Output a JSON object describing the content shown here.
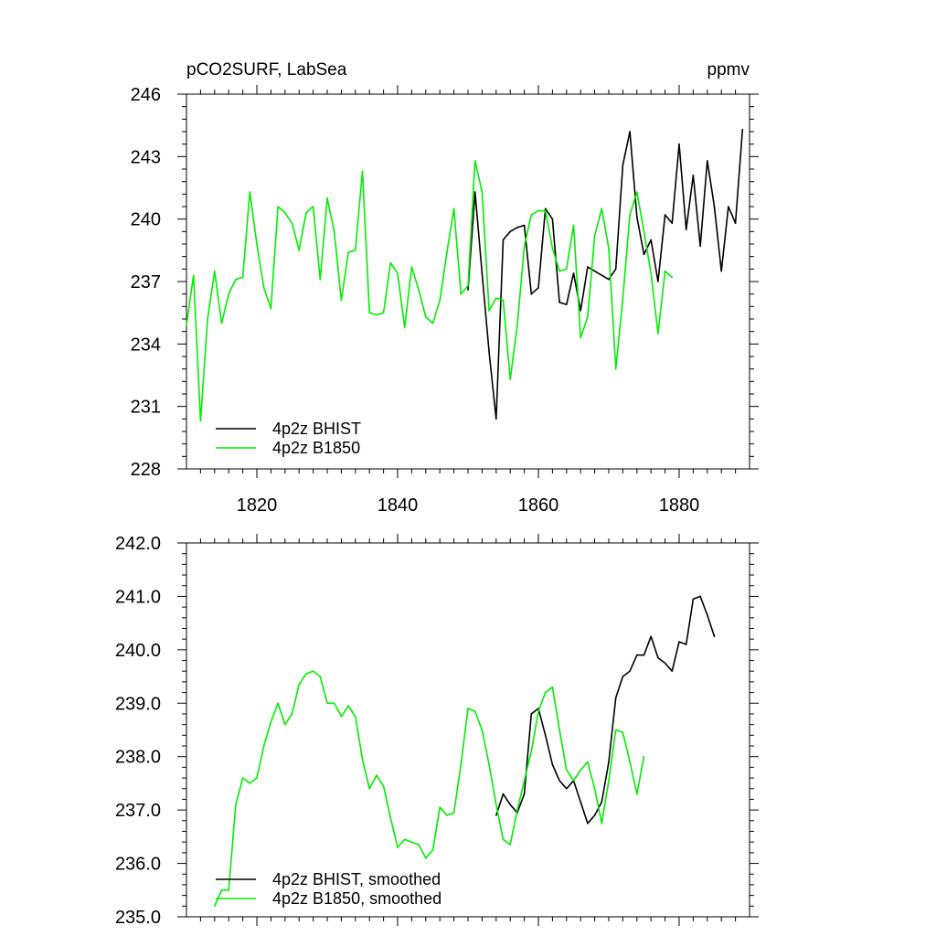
{
  "colors": {
    "bhist": "#000000",
    "b1850": "#00ee00"
  },
  "chart_data": [
    {
      "type": "line",
      "title": "pCO2SURF, LabSea",
      "units": "ppmv",
      "xlim": [
        1810,
        1890
      ],
      "ylim": [
        228,
        246
      ],
      "xticks": [
        1820,
        1840,
        1860,
        1880
      ],
      "yticks": [
        228,
        231,
        234,
        237,
        240,
        243,
        246
      ],
      "ytick_labels": [
        "228",
        "231",
        "234",
        "237",
        "240",
        "243",
        "246"
      ],
      "legend_position": "bottom-left",
      "series": [
        {
          "name": "4p2z BHIST",
          "color_key": "bhist",
          "x": [
            1850,
            1851,
            1852,
            1853,
            1854,
            1855,
            1856,
            1857,
            1858,
            1859,
            1860,
            1861,
            1862,
            1863,
            1864,
            1865,
            1866,
            1867,
            1868,
            1869,
            1870,
            1871,
            1872,
            1873,
            1874,
            1875,
            1876,
            1877,
            1878,
            1879,
            1880,
            1881,
            1882,
            1883,
            1884,
            1885,
            1886,
            1887,
            1888,
            1889
          ],
          "y": [
            236.6,
            241.3,
            237.4,
            233.6,
            230.4,
            239.0,
            239.4,
            239.6,
            239.7,
            236.4,
            236.7,
            240.5,
            240.0,
            236.0,
            235.9,
            237.4,
            235.6,
            237.7,
            237.5,
            237.3,
            237.1,
            237.6,
            242.6,
            244.2,
            240.1,
            238.3,
            239.0,
            237.0,
            240.2,
            239.8,
            243.6,
            239.5,
            242.1,
            238.7,
            242.8,
            240.6,
            237.5,
            240.6,
            239.8,
            244.3
          ]
        },
        {
          "name": "4p2z B1850",
          "color_key": "b1850",
          "x": [
            1810,
            1811,
            1812,
            1813,
            1814,
            1815,
            1816,
            1817,
            1818,
            1819,
            1820,
            1821,
            1822,
            1823,
            1824,
            1825,
            1826,
            1827,
            1828,
            1829,
            1830,
            1831,
            1832,
            1833,
            1834,
            1835,
            1836,
            1837,
            1838,
            1839,
            1840,
            1841,
            1842,
            1843,
            1844,
            1845,
            1846,
            1847,
            1848,
            1849,
            1850,
            1851,
            1852,
            1853,
            1854,
            1855,
            1856,
            1857,
            1858,
            1859,
            1860,
            1861,
            1862,
            1863,
            1864,
            1865,
            1866,
            1867,
            1868,
            1869,
            1870,
            1871,
            1872,
            1873,
            1874,
            1875,
            1876,
            1877,
            1878,
            1879
          ],
          "y": [
            234.9,
            237.3,
            230.3,
            235.2,
            237.5,
            235.0,
            236.4,
            237.1,
            237.2,
            241.3,
            238.8,
            236.7,
            235.7,
            240.6,
            240.3,
            239.8,
            238.5,
            240.3,
            240.6,
            237.1,
            241.0,
            239.4,
            236.1,
            238.4,
            238.5,
            242.3,
            235.5,
            235.4,
            235.5,
            237.9,
            237.4,
            234.8,
            237.7,
            236.6,
            235.3,
            235.0,
            236.1,
            238.4,
            240.5,
            236.4,
            236.8,
            242.8,
            241.3,
            235.6,
            236.2,
            236.1,
            232.3,
            234.9,
            238.7,
            240.2,
            240.4,
            240.4,
            238.6,
            237.5,
            237.6,
            239.7,
            234.3,
            235.3,
            239.2,
            240.5,
            238.6,
            232.8,
            236.2,
            240.2,
            241.3,
            239.4,
            237.4,
            234.5,
            237.5,
            237.2
          ]
        }
      ]
    },
    {
      "type": "line",
      "title": "",
      "xlim": [
        1810,
        1890
      ],
      "ylim": [
        235.0,
        242.0
      ],
      "xticks": [
        1820,
        1840,
        1860,
        1880
      ],
      "yticks": [
        235.0,
        236.0,
        237.0,
        238.0,
        239.0,
        240.0,
        241.0,
        242.0
      ],
      "ytick_labels": [
        "235.0",
        "236.0",
        "237.0",
        "238.0",
        "239.0",
        "240.0",
        "241.0",
        "242.0"
      ],
      "legend_position": "bottom-left",
      "series": [
        {
          "name": "4p2z BHIST, smoothed",
          "color_key": "bhist",
          "x": [
            1854,
            1855,
            1856,
            1857,
            1858,
            1859,
            1860,
            1861,
            1862,
            1863,
            1864,
            1865,
            1866,
            1867,
            1868,
            1869,
            1870,
            1871,
            1872,
            1873,
            1874,
            1875,
            1876,
            1877,
            1878,
            1879,
            1880,
            1881,
            1882,
            1883,
            1884,
            1885
          ],
          "y": [
            236.9,
            237.3,
            237.1,
            236.95,
            237.3,
            238.8,
            238.9,
            238.4,
            237.85,
            237.55,
            237.4,
            237.55,
            237.15,
            236.75,
            236.9,
            237.15,
            237.9,
            239.1,
            239.5,
            239.6,
            239.9,
            239.9,
            240.25,
            239.85,
            239.75,
            239.6,
            240.15,
            240.1,
            240.95,
            241.0,
            240.65,
            240.25
          ]
        },
        {
          "name": "4p2z B1850, smoothed",
          "color_key": "b1850",
          "x": [
            1814,
            1815,
            1816,
            1817,
            1818,
            1819,
            1820,
            1821,
            1822,
            1823,
            1824,
            1825,
            1826,
            1827,
            1828,
            1829,
            1830,
            1831,
            1832,
            1833,
            1834,
            1835,
            1836,
            1837,
            1838,
            1839,
            1840,
            1841,
            1842,
            1843,
            1844,
            1845,
            1846,
            1847,
            1848,
            1849,
            1850,
            1851,
            1852,
            1853,
            1854,
            1855,
            1856,
            1857,
            1858,
            1859,
            1860,
            1861,
            1862,
            1863,
            1864,
            1865,
            1866,
            1867,
            1868,
            1869,
            1870,
            1871,
            1872,
            1873,
            1874,
            1875
          ],
          "y": [
            235.2,
            235.5,
            235.5,
            237.1,
            237.6,
            237.5,
            237.6,
            238.2,
            238.65,
            239.0,
            238.6,
            238.8,
            239.35,
            239.55,
            239.6,
            239.5,
            239.0,
            239.0,
            238.75,
            238.95,
            238.75,
            237.95,
            237.4,
            237.65,
            237.45,
            236.85,
            236.3,
            236.45,
            236.4,
            236.35,
            236.1,
            236.25,
            237.05,
            236.9,
            236.95,
            237.85,
            238.9,
            238.85,
            238.5,
            237.85,
            237.1,
            236.45,
            236.35,
            237.0,
            237.55,
            238.1,
            238.85,
            239.2,
            239.3,
            238.5,
            237.75,
            237.55,
            237.75,
            237.9,
            237.4,
            236.75,
            237.55,
            238.5,
            238.45,
            237.9,
            237.3,
            238.0
          ]
        }
      ]
    }
  ]
}
